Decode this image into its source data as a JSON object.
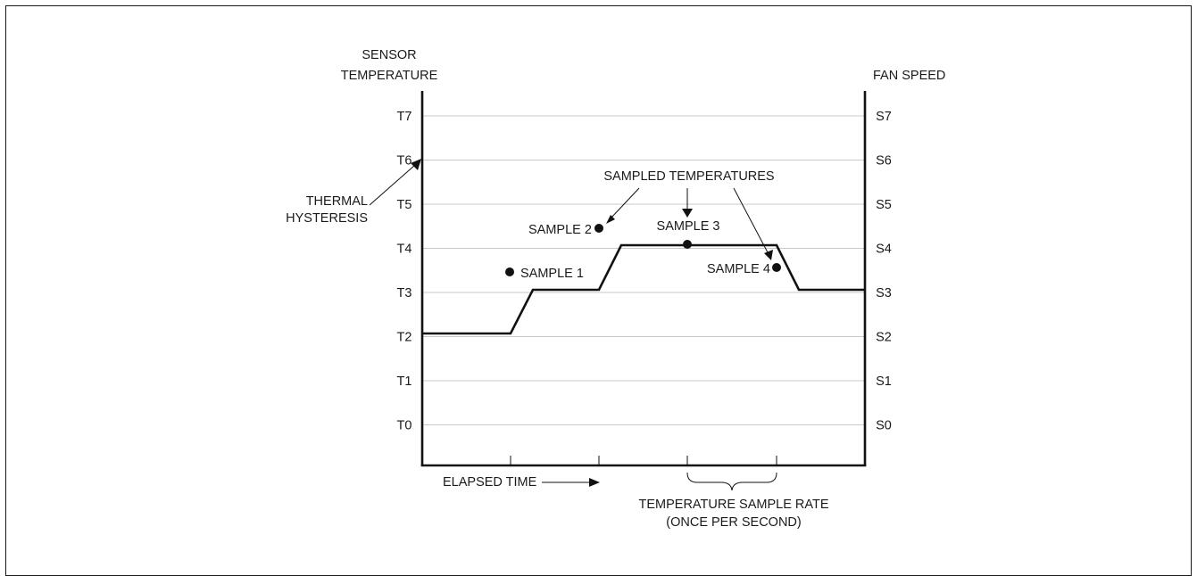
{
  "axes": {
    "left_title_line1": "SENSOR",
    "left_title_line2": "TEMPERATURE",
    "right_title": "FAN SPEED",
    "left_ticks": [
      "T7",
      "T6",
      "T5",
      "T4",
      "T3",
      "T2",
      "T1",
      "T0"
    ],
    "right_ticks": [
      "S7",
      "S6",
      "S5",
      "S4",
      "S3",
      "S2",
      "S1",
      "S0"
    ]
  },
  "labels": {
    "thermal_line1": "THERMAL",
    "thermal_line2": "HYSTERESIS",
    "sampled_temperatures": "SAMPLED TEMPERATURES",
    "elapsed_time": "ELAPSED TIME",
    "rate_line1": "TEMPERATURE SAMPLE RATE",
    "rate_line2": "(ONCE PER SECOND)"
  },
  "samples": [
    {
      "label": "SAMPLE 1",
      "level": 3.5
    },
    {
      "label": "SAMPLE 2",
      "level": 4.5
    },
    {
      "label": "SAMPLE 3",
      "level": 4.1
    },
    {
      "label": "SAMPLE 4",
      "level": 3.6
    }
  ],
  "fan_speed_profile": [
    "S2",
    "S3",
    "S4",
    "S3"
  ],
  "colors": {
    "line": "#111111",
    "grid": "#c8c8c8"
  }
}
